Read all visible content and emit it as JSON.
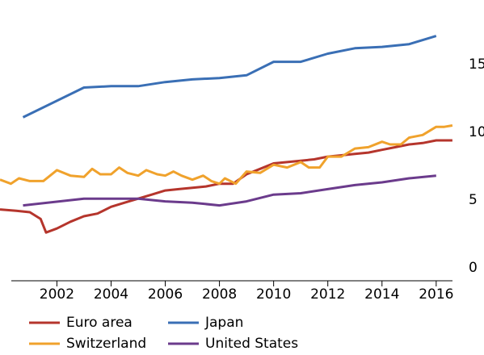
{
  "chart_data": {
    "type": "line",
    "xlim": [
      1999.9,
      2016.9
    ],
    "xticks": [
      2002,
      2004,
      2006,
      2008,
      2010,
      2012,
      2014,
      2016
    ],
    "ylim": [
      -0.36,
      20
    ],
    "yticks": [
      0,
      5,
      10,
      15
    ],
    "series": [
      {
        "name": "Euro area",
        "color": "#b5352c",
        "x": [
          1999.9,
          2000.5,
          2001,
          2001.4,
          2001.6,
          2002,
          2002.5,
          2003,
          2003.5,
          2004,
          2004.5,
          2005,
          2005.5,
          2006,
          2006.5,
          2007,
          2007.5,
          2008,
          2008.5,
          2009,
          2009.5,
          2010,
          2010.5,
          2011,
          2011.5,
          2012,
          2012.5,
          2013,
          2013.5,
          2014,
          2014.5,
          2015,
          2015.5,
          2016,
          2016.6
        ],
        "values": [
          4.9,
          4.8,
          4.7,
          4.2,
          3.2,
          3.5,
          4.0,
          4.4,
          4.6,
          5.1,
          5.4,
          5.7,
          6.0,
          6.3,
          6.4,
          6.5,
          6.6,
          6.8,
          6.8,
          7.5,
          7.9,
          8.3,
          8.4,
          8.5,
          8.6,
          8.8,
          8.9,
          9.0,
          9.1,
          9.3,
          9.5,
          9.7,
          9.8,
          10.0,
          10.0
        ]
      },
      {
        "name": "Switzerland",
        "color": "#f0a22c",
        "x": [
          1999.9,
          2000.3,
          2000.6,
          2001,
          2001.5,
          2002,
          2002.5,
          2003,
          2003.3,
          2003.6,
          2004,
          2004.3,
          2004.6,
          2005,
          2005.3,
          2005.7,
          2006,
          2006.3,
          2006.6,
          2007,
          2007.4,
          2007.7,
          2008,
          2008.2,
          2008.6,
          2009,
          2009.5,
          2010,
          2010.5,
          2011,
          2011.3,
          2011.7,
          2012,
          2012.5,
          2013,
          2013.5,
          2014,
          2014.3,
          2014.7,
          2015,
          2015.5,
          2016,
          2016.3,
          2016.6
        ],
        "values": [
          7.1,
          6.8,
          7.2,
          7.0,
          7.0,
          7.8,
          7.4,
          7.3,
          7.9,
          7.5,
          7.5,
          8.0,
          7.6,
          7.4,
          7.8,
          7.5,
          7.4,
          7.7,
          7.4,
          7.1,
          7.4,
          7.0,
          6.8,
          7.2,
          6.8,
          7.7,
          7.6,
          8.2,
          8.0,
          8.4,
          8.0,
          8.0,
          8.8,
          8.8,
          9.4,
          9.5,
          9.9,
          9.7,
          9.7,
          10.2,
          10.4,
          11.0,
          11.0,
          11.1
        ]
      },
      {
        "name": "Japan",
        "color": "#3a6fb5",
        "x": [
          2000.75,
          2003,
          2004,
          2005,
          2006,
          2007,
          2008,
          2009,
          2010,
          2011,
          2012,
          2013,
          2014,
          2015,
          2016
        ],
        "values": [
          11.7,
          13.9,
          14.0,
          14.0,
          14.3,
          14.5,
          14.6,
          14.8,
          15.8,
          15.8,
          16.4,
          16.8,
          16.9,
          17.1,
          17.7
        ]
      },
      {
        "name": "United States",
        "color": "#6b3b8c",
        "x": [
          2000.75,
          2003,
          2004,
          2005,
          2006,
          2007,
          2008,
          2009,
          2010,
          2011,
          2012,
          2013,
          2014,
          2015,
          2016
        ],
        "values": [
          5.2,
          5.7,
          5.7,
          5.7,
          5.5,
          5.4,
          5.2,
          5.5,
          6.0,
          6.1,
          6.4,
          6.7,
          6.9,
          7.2,
          7.4
        ]
      }
    ]
  }
}
